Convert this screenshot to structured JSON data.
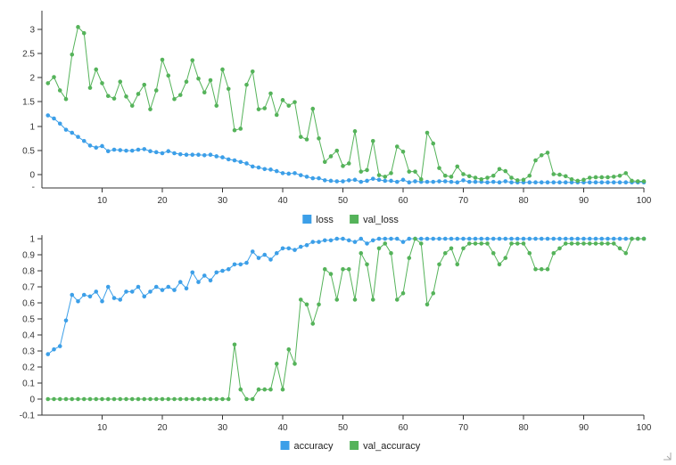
{
  "colors": {
    "accent_blue": "#3c9fe8",
    "accent_green": "#55b35a"
  },
  "chart_data": [
    {
      "type": "line",
      "title": "",
      "xlabel": "",
      "ylabel": "",
      "xlim": [
        0,
        100
      ],
      "ylim": [
        -0.1,
        3.3
      ],
      "x_ticks": [
        "10",
        "20",
        "30",
        "40",
        "50",
        "60",
        "70",
        "80",
        "90",
        "100"
      ],
      "y_ticks": [
        "0",
        "0.5",
        "1",
        "1.5",
        "2",
        "2.5",
        "3"
      ],
      "y_minor": [
        "-"
      ],
      "grid": false,
      "legend_position": "bottom-center",
      "series": [
        {
          "name": "loss",
          "color": "#3c9fe8",
          "values": [
            1.32,
            1.26,
            1.16,
            1.04,
            0.98,
            0.9,
            0.82,
            0.73,
            0.69,
            0.72,
            0.62,
            0.65,
            0.64,
            0.63,
            0.63,
            0.65,
            0.66,
            0.62,
            0.6,
            0.58,
            0.62,
            0.58,
            0.56,
            0.55,
            0.55,
            0.55,
            0.54,
            0.55,
            0.52,
            0.5,
            0.46,
            0.44,
            0.41,
            0.38,
            0.32,
            0.3,
            0.27,
            0.26,
            0.23,
            0.19,
            0.18,
            0.19,
            0.15,
            0.12,
            0.09,
            0.09,
            0.05,
            0.04,
            0.03,
            0.03,
            0.05,
            0.06,
            0.02,
            0.04,
            0.08,
            0.06,
            0.04,
            0.04,
            0.02,
            0.06,
            0.01,
            0.03,
            0.02,
            0.02,
            0.02,
            0.03,
            0.03,
            0.02,
            0.01,
            0.05,
            0.02,
            0.02,
            0.02,
            0.01,
            0.02,
            0.01,
            0.03,
            0.01,
            0.01,
            0.01,
            0.01,
            0.01,
            0.01,
            0.01,
            0.01,
            0.01,
            0.01,
            0.01,
            0.01,
            0.01,
            0.01,
            0.01,
            0.01,
            0.01,
            0.01,
            0.01,
            0.01,
            0.01,
            0.01,
            0.01
          ]
        },
        {
          "name": "val_loss",
          "color": "#55b35a",
          "values": [
            1.95,
            2.07,
            1.81,
            1.64,
            2.51,
            3.05,
            2.93,
            1.86,
            2.22,
            1.95,
            1.7,
            1.65,
            1.98,
            1.69,
            1.51,
            1.74,
            1.92,
            1.44,
            1.81,
            2.41,
            2.1,
            1.64,
            1.72,
            1.98,
            2.4,
            2.04,
            1.77,
            2.01,
            1.51,
            2.22,
            1.84,
            1.03,
            1.06,
            1.92,
            2.18,
            1.44,
            1.46,
            1.75,
            1.33,
            1.62,
            1.51,
            1.58,
            0.9,
            0.85,
            1.45,
            0.87,
            0.41,
            0.52,
            0.63,
            0.33,
            0.38,
            1.01,
            0.22,
            0.25,
            0.82,
            0.15,
            0.12,
            0.19,
            0.71,
            0.61,
            0.22,
            0.22,
            0.07,
            0.98,
            0.77,
            0.29,
            0.14,
            0.12,
            0.32,
            0.17,
            0.13,
            0.1,
            0.07,
            0.1,
            0.14,
            0.27,
            0.23,
            0.1,
            0.05,
            0.06,
            0.14,
            0.44,
            0.54,
            0.59,
            0.17,
            0.16,
            0.13,
            0.07,
            0.04,
            0.06,
            0.1,
            0.11,
            0.11,
            0.11,
            0.12,
            0.14,
            0.19,
            0.04,
            0.03,
            0.03
          ]
        }
      ]
    },
    {
      "type": "line",
      "title": "",
      "xlabel": "",
      "ylabel": "",
      "xlim": [
        0,
        100
      ],
      "ylim": [
        -0.1,
        1
      ],
      "x_ticks": [
        "10",
        "20",
        "30",
        "40",
        "50",
        "60",
        "70",
        "80",
        "90",
        "100"
      ],
      "y_ticks": [
        "-0.1",
        "0",
        "0.1",
        "0.2",
        "0.3",
        "0.4",
        "0.5",
        "0.6",
        "0.7",
        "0.8",
        "0.9",
        "1"
      ],
      "grid": false,
      "legend_position": "bottom-center",
      "series": [
        {
          "name": "accuracy",
          "color": "#3c9fe8",
          "values": [
            0.28,
            0.31,
            0.33,
            0.49,
            0.65,
            0.61,
            0.65,
            0.64,
            0.67,
            0.61,
            0.7,
            0.63,
            0.62,
            0.67,
            0.67,
            0.7,
            0.64,
            0.67,
            0.7,
            0.68,
            0.7,
            0.68,
            0.73,
            0.69,
            0.79,
            0.73,
            0.77,
            0.74,
            0.79,
            0.8,
            0.81,
            0.84,
            0.84,
            0.85,
            0.92,
            0.88,
            0.9,
            0.87,
            0.91,
            0.94,
            0.94,
            0.93,
            0.95,
            0.96,
            0.98,
            0.98,
            0.99,
            0.99,
            1.0,
            1.0,
            0.99,
            0.98,
            1.0,
            0.97,
            0.99,
            1.0,
            1.0,
            1.0,
            1.0,
            0.98,
            1.0,
            1.0,
            1.0,
            1.0,
            1.0,
            1.0,
            1.0,
            1.0,
            1.0,
            1.0,
            1.0,
            1.0,
            1.0,
            1.0,
            1.0,
            1.0,
            1.0,
            1.0,
            1.0,
            1.0,
            1.0,
            1.0,
            1.0,
            1.0,
            1.0,
            1.0,
            1.0,
            1.0,
            1.0,
            1.0,
            1.0,
            1.0,
            1.0,
            1.0,
            1.0,
            1.0,
            1.0,
            1.0,
            1.0,
            1.0
          ]
        },
        {
          "name": "val_accuracy",
          "color": "#55b35a",
          "values": [
            0,
            0,
            0,
            0,
            0,
            0,
            0,
            0,
            0,
            0,
            0,
            0,
            0,
            0,
            0,
            0,
            0,
            0,
            0,
            0,
            0,
            0,
            0,
            0,
            0,
            0,
            0,
            0,
            0,
            0,
            0,
            0.34,
            0.06,
            0,
            0,
            0.06,
            0.06,
            0.06,
            0.22,
            0.06,
            0.31,
            0.22,
            0.62,
            0.59,
            0.47,
            0.59,
            0.81,
            0.78,
            0.62,
            0.81,
            0.81,
            0.62,
            0.91,
            0.84,
            0.62,
            0.94,
            0.97,
            0.91,
            0.62,
            0.66,
            0.88,
            1.0,
            0.97,
            0.59,
            0.66,
            0.84,
            0.91,
            0.94,
            0.84,
            0.94,
            0.97,
            0.97,
            0.97,
            0.97,
            0.91,
            0.84,
            0.88,
            0.97,
            0.97,
            0.97,
            0.91,
            0.81,
            0.81,
            0.81,
            0.91,
            0.94,
            0.97,
            0.97,
            0.97,
            0.97,
            0.97,
            0.97,
            0.97,
            0.97,
            0.97,
            0.94,
            0.91,
            1.0,
            1.0,
            1.0
          ]
        }
      ]
    }
  ]
}
